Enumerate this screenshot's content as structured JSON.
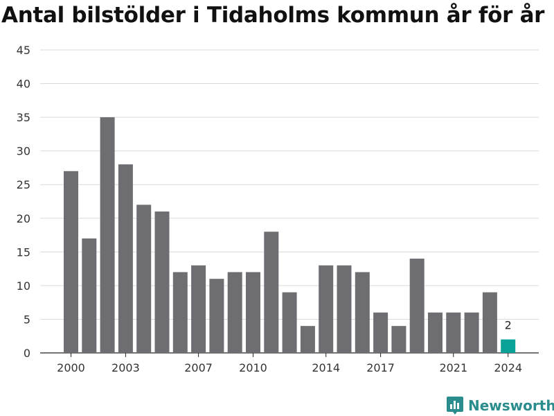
{
  "chart_data": {
    "type": "bar",
    "title": "Antal bilstölder i Tidaholms kommun år för år",
    "xlabel": "",
    "ylabel": "",
    "categories": [
      "2000",
      "2001",
      "2002",
      "2003",
      "2004",
      "2005",
      "2006",
      "2007",
      "2008",
      "2009",
      "2010",
      "2011",
      "2012",
      "2013",
      "2014",
      "2015",
      "2016",
      "2017",
      "2018",
      "2019",
      "2020",
      "2021",
      "2022",
      "2023",
      "2024"
    ],
    "values": [
      27,
      17,
      35,
      28,
      22,
      21,
      12,
      13,
      11,
      12,
      12,
      18,
      9,
      4,
      13,
      13,
      12,
      6,
      4,
      14,
      6,
      6,
      6,
      9,
      2
    ],
    "x_tick_labels": [
      "2000",
      "2003",
      "2007",
      "2010",
      "2014",
      "2017",
      "2021",
      "2024"
    ],
    "y_ticks": [
      0,
      5,
      10,
      15,
      20,
      25,
      30,
      35,
      40,
      45
    ],
    "ylim": [
      0,
      45
    ],
    "grid": true,
    "highlight": {
      "category": "2024",
      "label": "2"
    },
    "colors": {
      "bar": "#6e6d72",
      "highlight": "#0aa197",
      "grid": "#d9d9d9"
    }
  },
  "brand": {
    "name": "Newsworthy",
    "icon": "newsworthy-logo-icon",
    "color": "#2a8c8c"
  }
}
